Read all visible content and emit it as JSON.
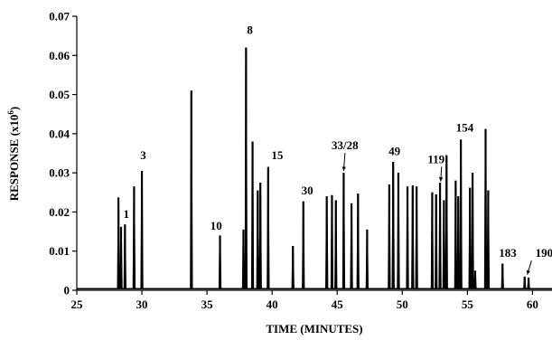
{
  "chart_data": {
    "type": "line",
    "xlabel": "TIME (MINUTES)",
    "ylabel": "RESPONSE (x10",
    "ylabel_sup": "6",
    "ylabel_close": ")",
    "xlim": [
      25,
      61.5
    ],
    "ylim": [
      0,
      0.07
    ],
    "xticks": [
      25,
      30,
      35,
      40,
      45,
      50,
      55,
      60
    ],
    "yticks": [
      0,
      0.01,
      0.02,
      0.03,
      0.04,
      0.05,
      0.06,
      0.07
    ],
    "ytick_labels": [
      "0",
      "0.01",
      "0.02",
      "0.03",
      "0.04",
      "0.05",
      "0.06",
      "0.07"
    ],
    "grid": false,
    "line_color": "#000000",
    "peaks": [
      {
        "x": 28.2,
        "y": 0.0237
      },
      {
        "x": 28.4,
        "y": 0.0162
      },
      {
        "x": 28.7,
        "y": 0.0168
      },
      {
        "x": 29.4,
        "y": 0.0265
      },
      {
        "x": 30.0,
        "y": 0.0305
      },
      {
        "x": 33.8,
        "y": 0.051
      },
      {
        "x": 36.0,
        "y": 0.014
      },
      {
        "x": 37.8,
        "y": 0.0155
      },
      {
        "x": 38.0,
        "y": 0.062
      },
      {
        "x": 38.5,
        "y": 0.038
      },
      {
        "x": 38.9,
        "y": 0.0255
      },
      {
        "x": 39.1,
        "y": 0.0275
      },
      {
        "x": 39.7,
        "y": 0.0315
      },
      {
        "x": 41.6,
        "y": 0.0113
      },
      {
        "x": 42.4,
        "y": 0.0227
      },
      {
        "x": 44.2,
        "y": 0.024
      },
      {
        "x": 44.6,
        "y": 0.0243
      },
      {
        "x": 44.9,
        "y": 0.023
      },
      {
        "x": 45.5,
        "y": 0.03
      },
      {
        "x": 46.1,
        "y": 0.0222
      },
      {
        "x": 46.6,
        "y": 0.0247
      },
      {
        "x": 47.3,
        "y": 0.0155
      },
      {
        "x": 49.0,
        "y": 0.027
      },
      {
        "x": 49.3,
        "y": 0.0328
      },
      {
        "x": 49.7,
        "y": 0.03
      },
      {
        "x": 50.4,
        "y": 0.0265
      },
      {
        "x": 50.8,
        "y": 0.0268
      },
      {
        "x": 51.1,
        "y": 0.0265
      },
      {
        "x": 52.3,
        "y": 0.025
      },
      {
        "x": 52.6,
        "y": 0.0245
      },
      {
        "x": 52.9,
        "y": 0.0275
      },
      {
        "x": 53.2,
        "y": 0.023
      },
      {
        "x": 53.4,
        "y": 0.0345
      },
      {
        "x": 54.1,
        "y": 0.028
      },
      {
        "x": 54.3,
        "y": 0.024
      },
      {
        "x": 54.5,
        "y": 0.0385
      },
      {
        "x": 55.2,
        "y": 0.0262
      },
      {
        "x": 55.4,
        "y": 0.03
      },
      {
        "x": 55.6,
        "y": 0.005
      },
      {
        "x": 56.4,
        "y": 0.0412
      },
      {
        "x": 56.6,
        "y": 0.0255
      },
      {
        "x": 57.7,
        "y": 0.0068
      },
      {
        "x": 59.4,
        "y": 0.0035
      },
      {
        "x": 59.7,
        "y": 0.0032
      }
    ],
    "annotations": [
      {
        "text": "1",
        "x": 28.8,
        "y": 0.0185,
        "arrow": false
      },
      {
        "text": "3",
        "x": 30.1,
        "y": 0.0335,
        "arrow": false
      },
      {
        "text": "8",
        "x": 38.3,
        "y": 0.0655,
        "arrow": false
      },
      {
        "text": "10",
        "x": 35.7,
        "y": 0.0155,
        "arrow": false
      },
      {
        "text": "15",
        "x": 40.4,
        "y": 0.0335,
        "arrow": false
      },
      {
        "text": "30",
        "x": 42.7,
        "y": 0.0245,
        "arrow": false
      },
      {
        "text": "33/28",
        "x": 45.6,
        "y": 0.036,
        "arrow": true,
        "arrow_to": [
          45.5,
          0.0305
        ]
      },
      {
        "text": "49",
        "x": 49.4,
        "y": 0.0345,
        "arrow": false
      },
      {
        "text": "119",
        "x": 52.6,
        "y": 0.0325,
        "arrow": true,
        "arrow_to": [
          52.95,
          0.0278
        ]
      },
      {
        "text": "154",
        "x": 54.8,
        "y": 0.0405,
        "arrow": false
      },
      {
        "text": "183",
        "x": 58.1,
        "y": 0.0085,
        "arrow": false
      },
      {
        "text": "190",
        "x": 60.9,
        "y": 0.0085,
        "arrow": true,
        "arrow_to": [
          59.6,
          0.004
        ]
      }
    ]
  }
}
